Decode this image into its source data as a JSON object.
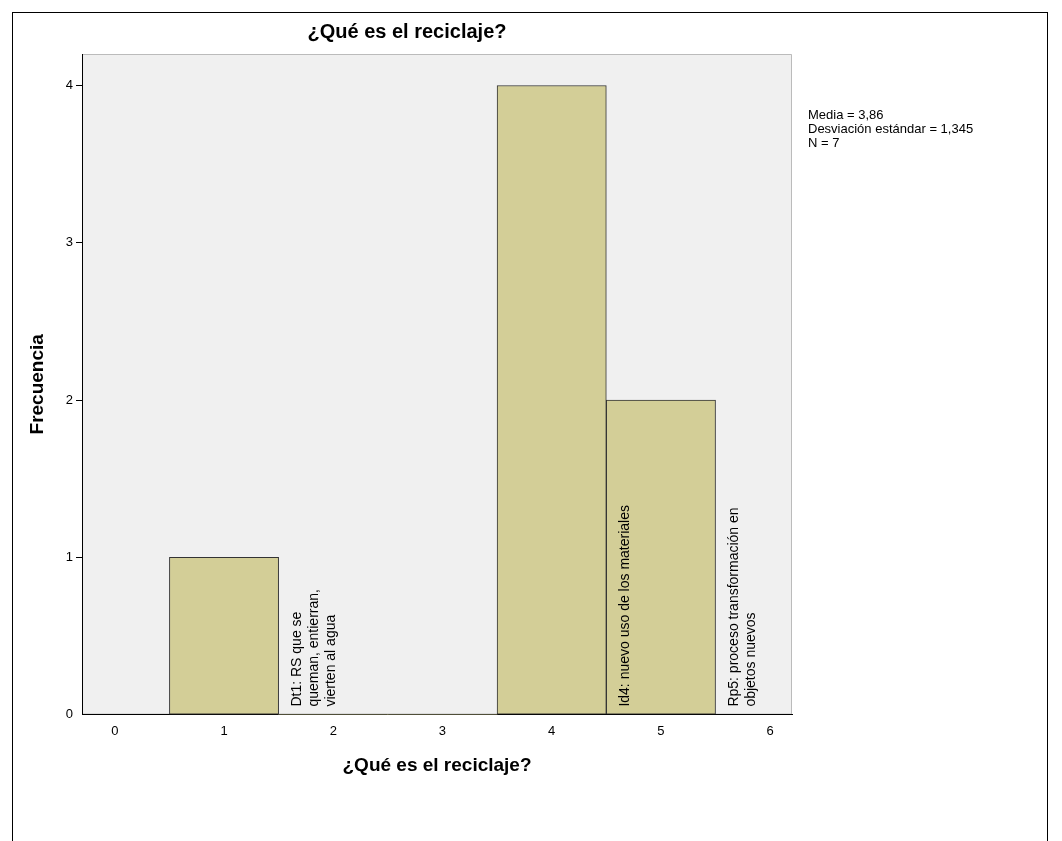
{
  "chart_data": {
    "type": "histogram",
    "title": "¿Qué es el reciclaje?",
    "xlabel": "¿Qué es el reciclaje?",
    "ylabel": "Frecuencia",
    "bins": [
      0.5,
      1.5,
      2.5,
      3.5,
      4.5,
      5.5
    ],
    "values": [
      1,
      0,
      0,
      4,
      2
    ],
    "color": "#d3ce97",
    "xlim": [
      -0.3,
      6.2
    ],
    "xticks": [
      0,
      1,
      2,
      3,
      4,
      5,
      6
    ],
    "ylim": [
      0,
      4.2
    ],
    "yticks": [
      0,
      1,
      2,
      3,
      4
    ],
    "grid": false,
    "legend": false,
    "annotations": [
      "Dt1: RS que se\nqueman, entierran,\nvierten al agua",
      "Id4: nuevo uso de los materiales",
      "Rp5: proceso transformación en\nobjetos nuevos",
      "Media = 3,86",
      "Desviación estándar = 1,345",
      "N = 7"
    ]
  }
}
